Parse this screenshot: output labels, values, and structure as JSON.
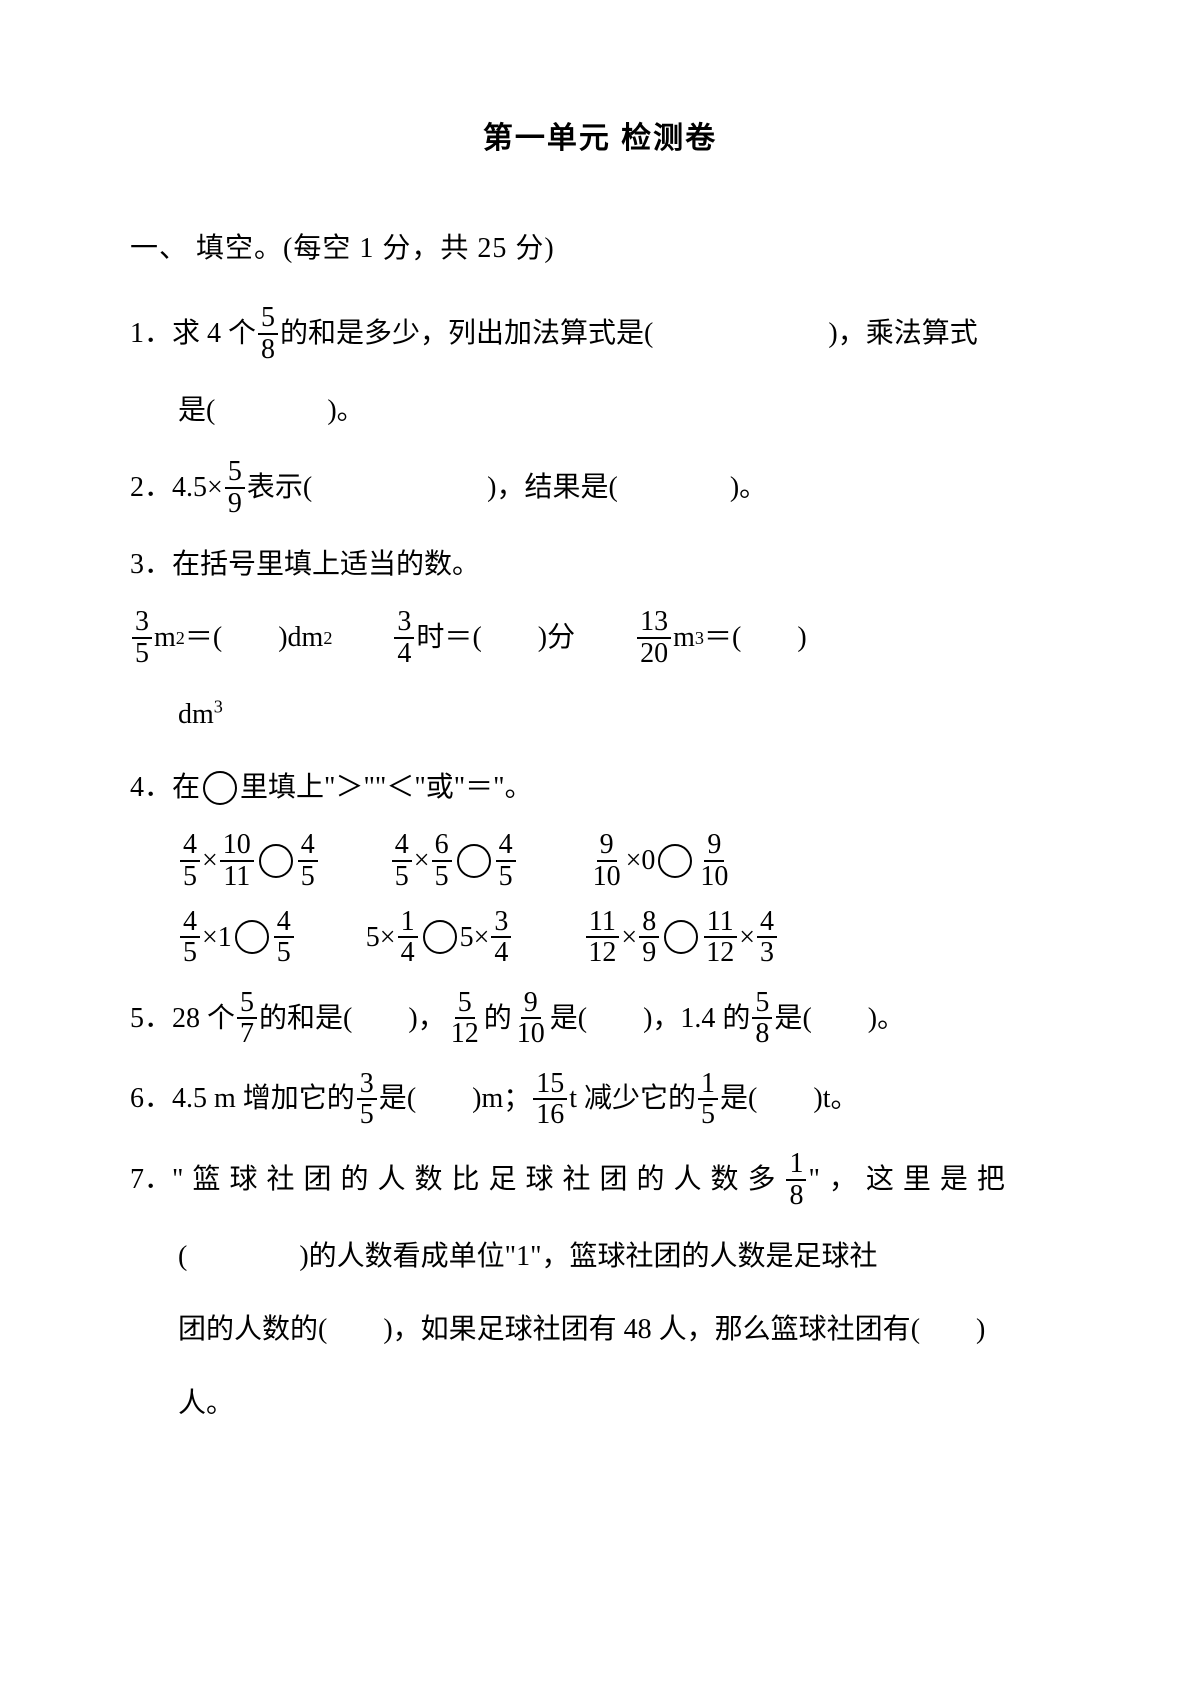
{
  "title": "第一单元 检测卷",
  "section1": {
    "label": "一、 填空。(每空 1 分，共 25 分)"
  },
  "q1": {
    "num": "1．",
    "t1a": "求 4 个",
    "f": {
      "n": "5",
      "d": "8"
    },
    "t1b": "的和是多少，列出加法算式是",
    "t1c": "，乘法算式",
    "t2a": "是",
    "t2b": "。"
  },
  "q2": {
    "num": "2．",
    "t1": "4.5×",
    "f": {
      "n": "5",
      "d": "9"
    },
    "t2": "表示",
    "t3": "，结果是",
    "t4": "。"
  },
  "q3": {
    "num": "3．",
    "t": "在括号里填上适当的数。",
    "c1": {
      "f": {
        "n": "3",
        "d": "5"
      },
      "u1": " m",
      "sup": "2",
      "eq": "＝",
      "u2": " dm",
      "sup2": "2"
    },
    "c2": {
      "f": {
        "n": "3",
        "d": "4"
      },
      "u1": "时＝",
      "u2": "分"
    },
    "c3": {
      "f": {
        "n": "13",
        "d": "20"
      },
      "u1": " m",
      "sup": "3",
      "eq": "＝"
    },
    "c3b": {
      "u": "dm",
      "sup": "3"
    }
  },
  "q4": {
    "num": "4．",
    "t1": "在",
    "t2": "里填上\"＞\"\"＜\"或\"＝\"。",
    "r1": {
      "a": {
        "f1": {
          "n": "4",
          "d": "5"
        },
        "op": "×",
        "f2": {
          "n": "10",
          "d": "11"
        },
        "cmp": true,
        "f3": {
          "n": "4",
          "d": "5"
        }
      },
      "b": {
        "f1": {
          "n": "4",
          "d": "5"
        },
        "op": "×",
        "f2": {
          "n": "6",
          "d": "5"
        },
        "cmp": true,
        "f3": {
          "n": "4",
          "d": "5"
        }
      },
      "c": {
        "f1": {
          "n": "9",
          "d": "10"
        },
        "op": "×0",
        "cmp": true,
        "f3": {
          "n": "9",
          "d": "10"
        }
      }
    },
    "r2": {
      "a": {
        "f1": {
          "n": "4",
          "d": "5"
        },
        "op": "×1",
        "cmp": true,
        "f3": {
          "n": "4",
          "d": "5"
        }
      },
      "b": {
        "lhs": "5×",
        "f1": {
          "n": "1",
          "d": "4"
        },
        "cmp": true,
        "rhs": "5×",
        "f2": {
          "n": "3",
          "d": "4"
        }
      },
      "c": {
        "f1": {
          "n": "11",
          "d": "12"
        },
        "op": "×",
        "f2": {
          "n": "8",
          "d": "9"
        },
        "cmp": true,
        "f3": {
          "n": "11",
          "d": "12"
        },
        "op2": "×",
        "f4": {
          "n": "4",
          "d": "3"
        }
      }
    }
  },
  "q5": {
    "num": "5．",
    "t1": "28 个",
    "f1": {
      "n": "5",
      "d": "7"
    },
    "t2": "的和是",
    "t3": "，",
    "f2": {
      "n": "5",
      "d": "12"
    },
    "t4": "的",
    "f3": {
      "n": "9",
      "d": "10"
    },
    "t5": "是",
    "t6": "，1.4 的",
    "f4": {
      "n": "5",
      "d": "8"
    },
    "t7": "是",
    "t8": "。"
  },
  "q6": {
    "num": "6．",
    "t1": "4.5 m 增加它的",
    "f1": {
      "n": "3",
      "d": "5"
    },
    "t2": "是",
    "t3": "m；",
    "f2": {
      "n": "15",
      "d": "16"
    },
    "t4": " t 减少它的",
    "f3": {
      "n": "1",
      "d": "5"
    },
    "t5": "是",
    "t6": "t。"
  },
  "q7": {
    "num": "7．",
    "t1": "\"篮球社团的人数比足球社团的人数多",
    "f": {
      "n": "1",
      "d": "8"
    },
    "t2": "\"，这里是把",
    "t3": "的人数看成单位\"1\"，篮球社团的人数是足球社",
    "t4": "团的人数的",
    "t5": "，如果足球社团有 48 人，那么篮球社团有",
    "t6": "人。"
  }
}
